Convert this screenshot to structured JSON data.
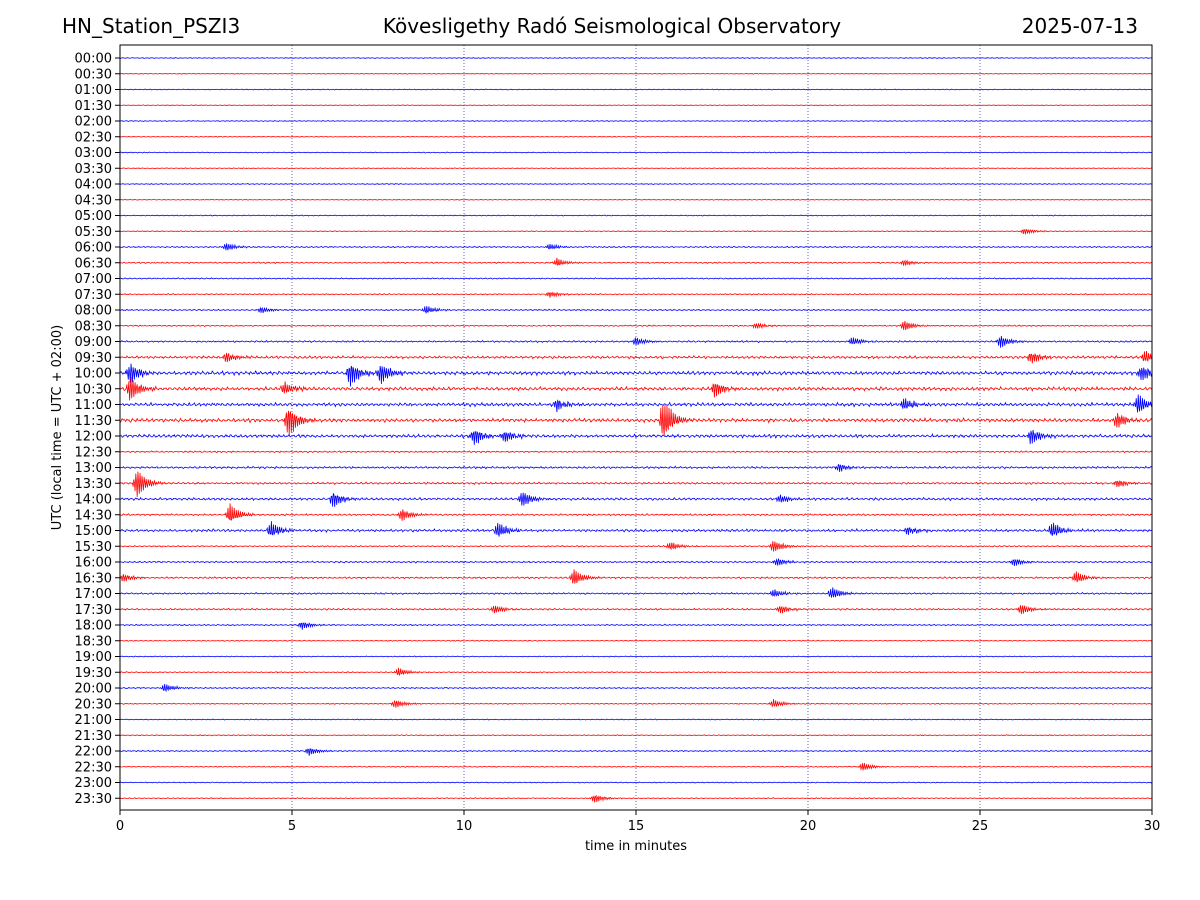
{
  "header": {
    "station": "HN_Station_PSZI3",
    "observatory": "Kövesligethy Radó Seismological Observatory",
    "date": "2025-07-13"
  },
  "chart_data": {
    "type": "line",
    "title": "Kövesligethy Radó Seismological Observatory",
    "xlabel": "time in minutes",
    "ylabel": "UTC (local time = UTC + 02:00)",
    "xlim": [
      0,
      30
    ],
    "x_ticks": [
      0,
      5,
      10,
      15,
      20,
      25,
      30
    ],
    "x_tick_labels": [
      "0",
      "5",
      "10",
      "15",
      "20",
      "25",
      "30"
    ],
    "grid": "vertical dotted at x ticks",
    "trace_colors": [
      "#0000ff",
      "#ff0000"
    ],
    "rows": [
      {
        "label": "00:00",
        "color": "blue",
        "activity": 0.04,
        "events": []
      },
      {
        "label": "00:30",
        "color": "red",
        "activity": 0.05,
        "events": []
      },
      {
        "label": "01:00",
        "color": "blue",
        "activity": 0.05,
        "events": []
      },
      {
        "label": "01:30",
        "color": "red",
        "activity": 0.05,
        "events": []
      },
      {
        "label": "02:00",
        "color": "blue",
        "activity": 0.05,
        "events": []
      },
      {
        "label": "02:30",
        "color": "red",
        "activity": 0.06,
        "events": []
      },
      {
        "label": "03:00",
        "color": "blue",
        "activity": 0.07,
        "events": []
      },
      {
        "label": "03:30",
        "color": "red",
        "activity": 0.07,
        "events": []
      },
      {
        "label": "04:00",
        "color": "blue",
        "activity": 0.08,
        "events": []
      },
      {
        "label": "04:30",
        "color": "red",
        "activity": 0.08,
        "events": []
      },
      {
        "label": "05:00",
        "color": "blue",
        "activity": 0.1,
        "events": []
      },
      {
        "label": "05:30",
        "color": "red",
        "activity": 0.12,
        "events": [
          [
            26.3,
            1.5
          ]
        ]
      },
      {
        "label": "06:00",
        "color": "blue",
        "activity": 0.3,
        "events": [
          [
            3.1,
            2
          ],
          [
            12.5,
            1.5
          ]
        ]
      },
      {
        "label": "06:30",
        "color": "red",
        "activity": 0.3,
        "events": [
          [
            12.7,
            2
          ],
          [
            22.8,
            1.5
          ]
        ]
      },
      {
        "label": "07:00",
        "color": "blue",
        "activity": 0.25,
        "events": []
      },
      {
        "label": "07:30",
        "color": "red",
        "activity": 0.25,
        "events": [
          [
            12.5,
            1.5
          ]
        ]
      },
      {
        "label": "08:00",
        "color": "blue",
        "activity": 0.3,
        "events": [
          [
            8.9,
            2
          ],
          [
            4.1,
            1.5
          ]
        ]
      },
      {
        "label": "08:30",
        "color": "red",
        "activity": 0.3,
        "events": [
          [
            22.8,
            2.5
          ],
          [
            18.5,
            1.5
          ]
        ]
      },
      {
        "label": "09:00",
        "color": "blue",
        "activity": 0.5,
        "events": [
          [
            15.0,
            2
          ],
          [
            21.3,
            2
          ],
          [
            25.6,
            3
          ]
        ]
      },
      {
        "label": "09:30",
        "color": "red",
        "activity": 0.9,
        "events": [
          [
            3.1,
            2.5
          ],
          [
            26.5,
            3
          ],
          [
            29.8,
            3
          ]
        ]
      },
      {
        "label": "10:00",
        "color": "blue",
        "activity": 1.4,
        "events": [
          [
            0.3,
            5
          ],
          [
            6.7,
            6
          ],
          [
            7.6,
            5
          ],
          [
            29.7,
            4
          ]
        ]
      },
      {
        "label": "10:30",
        "color": "red",
        "activity": 1.3,
        "events": [
          [
            0.3,
            6
          ],
          [
            17.3,
            4
          ],
          [
            4.8,
            3
          ]
        ]
      },
      {
        "label": "11:00",
        "color": "blue",
        "activity": 1.3,
        "events": [
          [
            12.7,
            3
          ],
          [
            22.8,
            3
          ],
          [
            29.6,
            5
          ]
        ]
      },
      {
        "label": "11:30",
        "color": "red",
        "activity": 1.4,
        "events": [
          [
            4.9,
            8
          ],
          [
            15.8,
            11
          ],
          [
            29.0,
            4
          ]
        ]
      },
      {
        "label": "12:00",
        "color": "blue",
        "activity": 1.2,
        "events": [
          [
            10.3,
            4
          ],
          [
            11.2,
            3
          ],
          [
            26.5,
            4
          ]
        ]
      },
      {
        "label": "12:30",
        "color": "red",
        "activity": 0.4,
        "events": []
      },
      {
        "label": "13:00",
        "color": "blue",
        "activity": 0.7,
        "events": [
          [
            20.9,
            2
          ]
        ]
      },
      {
        "label": "13:30",
        "color": "red",
        "activity": 0.6,
        "events": [
          [
            0.5,
            7
          ],
          [
            29.0,
            2
          ]
        ]
      },
      {
        "label": "14:00",
        "color": "blue",
        "activity": 0.8,
        "events": [
          [
            6.2,
            4
          ],
          [
            11.7,
            4
          ],
          [
            19.2,
            2
          ]
        ]
      },
      {
        "label": "14:30",
        "color": "red",
        "activity": 0.5,
        "events": [
          [
            3.2,
            5
          ],
          [
            8.2,
            3
          ]
        ]
      },
      {
        "label": "15:00",
        "color": "blue",
        "activity": 0.9,
        "events": [
          [
            4.4,
            4
          ],
          [
            11.0,
            4
          ],
          [
            27.1,
            4
          ],
          [
            22.9,
            2
          ]
        ]
      },
      {
        "label": "15:30",
        "color": "red",
        "activity": 0.3,
        "events": [
          [
            19.0,
            3
          ],
          [
            16.0,
            2
          ]
        ]
      },
      {
        "label": "16:00",
        "color": "blue",
        "activity": 0.4,
        "events": [
          [
            19.1,
            2
          ],
          [
            26.0,
            2
          ]
        ]
      },
      {
        "label": "16:30",
        "color": "red",
        "activity": 0.5,
        "events": [
          [
            13.2,
            4
          ],
          [
            27.8,
            3
          ],
          [
            0.1,
            2
          ]
        ]
      },
      {
        "label": "17:00",
        "color": "blue",
        "activity": 0.45,
        "events": [
          [
            20.7,
            3
          ],
          [
            19.0,
            2
          ]
        ]
      },
      {
        "label": "17:30",
        "color": "red",
        "activity": 0.45,
        "events": [
          [
            10.9,
            2
          ],
          [
            26.2,
            2.5
          ],
          [
            19.2,
            2
          ]
        ]
      },
      {
        "label": "18:00",
        "color": "blue",
        "activity": 0.3,
        "events": [
          [
            5.3,
            2
          ]
        ]
      },
      {
        "label": "18:30",
        "color": "red",
        "activity": 0.15,
        "events": []
      },
      {
        "label": "19:00",
        "color": "blue",
        "activity": 0.1,
        "events": []
      },
      {
        "label": "19:30",
        "color": "red",
        "activity": 0.2,
        "events": [
          [
            8.1,
            2
          ]
        ]
      },
      {
        "label": "20:00",
        "color": "blue",
        "activity": 0.25,
        "events": [
          [
            1.3,
            2
          ]
        ]
      },
      {
        "label": "20:30",
        "color": "red",
        "activity": 0.2,
        "events": [
          [
            19.0,
            2
          ],
          [
            8.0,
            2
          ]
        ]
      },
      {
        "label": "21:00",
        "color": "blue",
        "activity": 0.1,
        "events": []
      },
      {
        "label": "21:30",
        "color": "red",
        "activity": 0.15,
        "events": []
      },
      {
        "label": "22:00",
        "color": "blue",
        "activity": 0.2,
        "events": [
          [
            5.5,
            2
          ]
        ]
      },
      {
        "label": "22:30",
        "color": "red",
        "activity": 0.15,
        "events": [
          [
            21.6,
            2
          ]
        ]
      },
      {
        "label": "23:00",
        "color": "blue",
        "activity": 0.12,
        "events": []
      },
      {
        "label": "23:30",
        "color": "red",
        "activity": 0.15,
        "events": [
          [
            13.8,
            2
          ]
        ]
      }
    ]
  }
}
